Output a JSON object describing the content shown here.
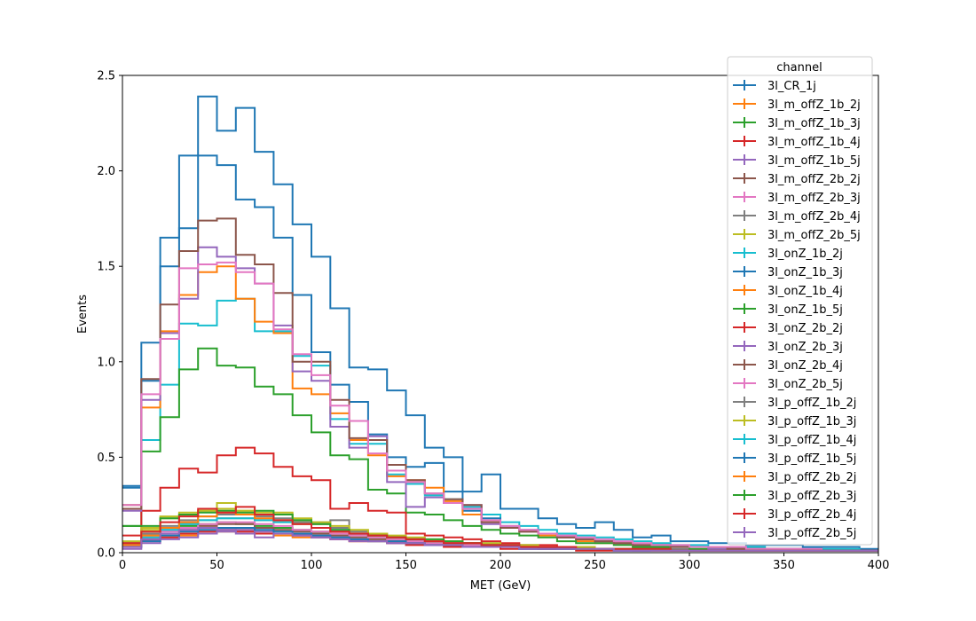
{
  "chart_data": {
    "type": "line",
    "subtype": "step-histogram",
    "xlabel": "MET (GeV)",
    "ylabel": "Events",
    "xlim": [
      0,
      400
    ],
    "ylim": [
      0,
      2.5
    ],
    "x_ticks": [
      "0",
      "50",
      "100",
      "150",
      "200",
      "250",
      "300",
      "350",
      "400"
    ],
    "y_ticks": [
      "0.0",
      "0.5",
      "1.0",
      "1.5",
      "2.0",
      "2.5"
    ],
    "grid": false,
    "legend": {
      "title": "channel",
      "placement": "top-right"
    },
    "bin_edges": [
      0,
      10,
      20,
      30,
      40,
      50,
      60,
      70,
      80,
      90,
      100,
      110,
      120,
      130,
      140,
      150,
      160,
      170,
      180,
      190,
      200,
      210,
      220,
      230,
      240,
      250,
      260,
      270,
      280,
      290,
      300,
      310,
      320,
      330,
      340,
      350,
      360,
      370,
      380,
      390,
      400
    ],
    "series": [
      {
        "name": "3l_CR_1j",
        "color": "#1f77b4",
        "values": [
          0.35,
          1.1,
          1.65,
          2.08,
          2.39,
          2.21,
          2.33,
          2.1,
          1.93,
          1.72,
          1.55,
          1.28,
          0.97,
          0.96,
          0.85,
          0.72,
          0.55,
          0.5,
          0.32,
          0.41,
          0.23,
          0.23,
          0.18,
          0.15,
          0.13,
          0.16,
          0.12,
          0.08,
          0.09,
          0.06,
          0.06,
          0.05,
          0.05,
          0.04,
          0.04,
          0.04,
          0.03,
          0.03,
          0.03,
          0.02
        ]
      },
      {
        "name": "3l_m_offZ_1b_2j",
        "color": "#ff7f0e",
        "values": [
          0.04,
          0.07,
          0.08,
          0.09,
          0.1,
          0.11,
          0.12,
          0.1,
          0.09,
          0.08,
          0.08,
          0.07,
          0.06,
          0.06,
          0.05,
          0.05,
          0.04,
          0.04,
          0.03,
          0.03,
          0.03,
          0.03,
          0.02,
          0.02,
          0.02,
          0.02,
          0.02,
          0.02,
          0.01,
          0.01,
          0.01,
          0.01,
          0.01,
          0.01,
          0.01,
          0.01,
          0.01,
          0.01,
          0.01,
          0.01
        ]
      },
      {
        "name": "3l_m_offZ_1b_3j",
        "color": "#2ca02c",
        "values": [
          0.05,
          0.1,
          0.13,
          0.14,
          0.15,
          0.16,
          0.15,
          0.14,
          0.13,
          0.12,
          0.11,
          0.1,
          0.09,
          0.08,
          0.07,
          0.06,
          0.05,
          0.05,
          0.04,
          0.04,
          0.03,
          0.03,
          0.03,
          0.02,
          0.02,
          0.02,
          0.02,
          0.02,
          0.01,
          0.01,
          0.01,
          0.01,
          0.01,
          0.01,
          0.01,
          0.01,
          0.01,
          0.01,
          0.01,
          0.01
        ]
      },
      {
        "name": "3l_m_offZ_1b_4j",
        "color": "#d62728",
        "values": [
          0.03,
          0.06,
          0.08,
          0.1,
          0.11,
          0.12,
          0.11,
          0.1,
          0.1,
          0.09,
          0.08,
          0.07,
          0.06,
          0.06,
          0.05,
          0.04,
          0.04,
          0.03,
          0.03,
          0.03,
          0.02,
          0.02,
          0.02,
          0.02,
          0.01,
          0.01,
          0.01,
          0.01,
          0.01,
          0.01,
          0.01,
          0.01,
          0.01,
          0.01,
          0.01,
          0.01,
          0.01,
          0.01,
          0.01,
          0.01
        ]
      },
      {
        "name": "3l_m_offZ_1b_5j",
        "color": "#9467bd",
        "values": [
          0.02,
          0.05,
          0.07,
          0.08,
          0.1,
          0.11,
          0.12,
          0.11,
          0.1,
          0.09,
          0.08,
          0.08,
          0.07,
          0.06,
          0.05,
          0.05,
          0.04,
          0.04,
          0.03,
          0.03,
          0.03,
          0.02,
          0.02,
          0.02,
          0.02,
          0.02,
          0.01,
          0.01,
          0.01,
          0.01,
          0.01,
          0.01,
          0.01,
          0.01,
          0.01,
          0.01,
          0.01,
          0.01,
          0.01,
          0.01
        ]
      },
      {
        "name": "3l_m_offZ_2b_2j",
        "color": "#8c564b",
        "values": [
          0.03,
          0.07,
          0.1,
          0.12,
          0.14,
          0.15,
          0.15,
          0.13,
          0.12,
          0.11,
          0.1,
          0.09,
          0.08,
          0.07,
          0.06,
          0.05,
          0.05,
          0.04,
          0.04,
          0.03,
          0.03,
          0.03,
          0.02,
          0.02,
          0.02,
          0.02,
          0.02,
          0.01,
          0.01,
          0.01,
          0.01,
          0.01,
          0.01,
          0.01,
          0.01,
          0.01,
          0.01,
          0.01,
          0.01,
          0.01
        ]
      },
      {
        "name": "3l_m_offZ_2b_3j",
        "color": "#e377c2",
        "values": [
          0.04,
          0.08,
          0.11,
          0.13,
          0.15,
          0.16,
          0.16,
          0.15,
          0.14,
          0.12,
          0.11,
          0.1,
          0.09,
          0.08,
          0.07,
          0.06,
          0.05,
          0.05,
          0.04,
          0.04,
          0.03,
          0.03,
          0.03,
          0.02,
          0.02,
          0.02,
          0.02,
          0.02,
          0.01,
          0.01,
          0.01,
          0.01,
          0.01,
          0.01,
          0.01,
          0.01,
          0.01,
          0.01,
          0.01,
          0.01
        ]
      },
      {
        "name": "3l_m_offZ_2b_4j",
        "color": "#7f7f7f",
        "values": [
          0.04,
          0.09,
          0.12,
          0.15,
          0.17,
          0.18,
          0.18,
          0.17,
          0.16,
          0.17,
          0.16,
          0.17,
          0.1,
          0.09,
          0.08,
          0.07,
          0.06,
          0.06,
          0.05,
          0.05,
          0.04,
          0.04,
          0.03,
          0.03,
          0.03,
          0.02,
          0.02,
          0.02,
          0.02,
          0.02,
          0.01,
          0.01,
          0.01,
          0.01,
          0.01,
          0.01,
          0.01,
          0.01,
          0.01,
          0.01
        ]
      },
      {
        "name": "3l_m_offZ_2b_5j",
        "color": "#bcbd22",
        "values": [
          0.05,
          0.12,
          0.19,
          0.21,
          0.22,
          0.26,
          0.22,
          0.2,
          0.21,
          0.17,
          0.15,
          0.13,
          0.11,
          0.1,
          0.08,
          0.07,
          0.06,
          0.06,
          0.05,
          0.04,
          0.04,
          0.03,
          0.03,
          0.03,
          0.02,
          0.02,
          0.02,
          0.02,
          0.02,
          0.01,
          0.01,
          0.01,
          0.01,
          0.01,
          0.01,
          0.01,
          0.01,
          0.01,
          0.01,
          0.01
        ]
      },
      {
        "name": "3l_onZ_1b_2j",
        "color": "#17becf",
        "values": [
          0.25,
          0.59,
          0.88,
          1.2,
          1.19,
          1.32,
          1.33,
          1.16,
          1.16,
          1.03,
          0.98,
          0.7,
          0.57,
          0.57,
          0.41,
          0.36,
          0.3,
          0.28,
          0.24,
          0.2,
          0.16,
          0.14,
          0.12,
          0.1,
          0.09,
          0.08,
          0.07,
          0.06,
          0.05,
          0.04,
          0.04,
          0.03,
          0.03,
          0.03,
          0.02,
          0.02,
          0.02,
          0.02,
          0.02,
          0.01
        ]
      },
      {
        "name": "3l_onZ_1b_3j",
        "color": "#1f77b4",
        "values": [
          0.34,
          0.9,
          1.5,
          1.7,
          2.08,
          2.03,
          1.85,
          1.81,
          1.65,
          1.35,
          1.05,
          0.88,
          0.79,
          0.62,
          0.5,
          0.45,
          0.47,
          0.32,
          0.22,
          0.18,
          0.14,
          0.12,
          0.1,
          0.08,
          0.07,
          0.06,
          0.05,
          0.04,
          0.04,
          0.03,
          0.03,
          0.03,
          0.02,
          0.02,
          0.02,
          0.02,
          0.02,
          0.01,
          0.01,
          0.01
        ]
      },
      {
        "name": "3l_onZ_1b_4j",
        "color": "#ff7f0e",
        "values": [
          0.25,
          0.76,
          1.16,
          1.35,
          1.47,
          1.5,
          1.33,
          1.21,
          1.15,
          0.86,
          0.83,
          0.73,
          0.59,
          0.51,
          0.4,
          0.38,
          0.34,
          0.27,
          0.2,
          0.16,
          0.13,
          0.11,
          0.09,
          0.08,
          0.06,
          0.05,
          0.05,
          0.04,
          0.03,
          0.03,
          0.03,
          0.02,
          0.02,
          0.02,
          0.02,
          0.01,
          0.01,
          0.01,
          0.01,
          0.01
        ]
      },
      {
        "name": "3l_onZ_1b_5j",
        "color": "#2ca02c",
        "values": [
          0.14,
          0.53,
          0.71,
          0.96,
          1.07,
          0.98,
          0.97,
          0.87,
          0.83,
          0.72,
          0.63,
          0.51,
          0.49,
          0.33,
          0.31,
          0.21,
          0.2,
          0.17,
          0.14,
          0.12,
          0.1,
          0.09,
          0.08,
          0.06,
          0.05,
          0.05,
          0.04,
          0.03,
          0.03,
          0.03,
          0.02,
          0.02,
          0.02,
          0.02,
          0.01,
          0.01,
          0.01,
          0.01,
          0.01,
          0.01
        ]
      },
      {
        "name": "3l_onZ_2b_2j",
        "color": "#d62728",
        "values": [
          0.09,
          0.22,
          0.34,
          0.44,
          0.42,
          0.51,
          0.55,
          0.52,
          0.45,
          0.4,
          0.38,
          0.23,
          0.26,
          0.22,
          0.21,
          0.1,
          0.09,
          0.08,
          0.07,
          0.06,
          0.05,
          0.04,
          0.04,
          0.03,
          0.03,
          0.02,
          0.02,
          0.02,
          0.02,
          0.01,
          0.01,
          0.01,
          0.01,
          0.01,
          0.01,
          0.01,
          0.01,
          0.01,
          0.01,
          0.01
        ]
      },
      {
        "name": "3l_onZ_2b_3j",
        "color": "#9467bd",
        "values": [
          0.22,
          0.8,
          1.15,
          1.33,
          1.6,
          1.55,
          1.49,
          1.41,
          1.19,
          0.95,
          0.9,
          0.66,
          0.55,
          0.61,
          0.37,
          0.24,
          0.29,
          0.26,
          0.25,
          0.15,
          0.13,
          0.11,
          0.1,
          0.08,
          0.07,
          0.06,
          0.05,
          0.04,
          0.04,
          0.03,
          0.03,
          0.02,
          0.02,
          0.02,
          0.02,
          0.02,
          0.01,
          0.01,
          0.01,
          0.01
        ]
      },
      {
        "name": "3l_onZ_2b_4j",
        "color": "#8c564b",
        "values": [
          0.23,
          0.91,
          1.3,
          1.58,
          1.74,
          1.75,
          1.56,
          1.51,
          1.36,
          1.0,
          1.0,
          0.8,
          0.6,
          0.59,
          0.46,
          0.38,
          0.31,
          0.28,
          0.25,
          0.16,
          0.13,
          0.11,
          0.1,
          0.08,
          0.07,
          0.06,
          0.05,
          0.04,
          0.04,
          0.03,
          0.03,
          0.03,
          0.02,
          0.02,
          0.02,
          0.02,
          0.01,
          0.01,
          0.01,
          0.01
        ]
      },
      {
        "name": "3l_onZ_2b_5j",
        "color": "#e377c2",
        "values": [
          0.25,
          0.83,
          1.12,
          1.49,
          1.51,
          1.52,
          1.47,
          1.41,
          1.17,
          1.04,
          0.93,
          0.77,
          0.69,
          0.52,
          0.43,
          0.37,
          0.31,
          0.26,
          0.23,
          0.17,
          0.14,
          0.12,
          0.1,
          0.09,
          0.08,
          0.07,
          0.06,
          0.05,
          0.04,
          0.04,
          0.03,
          0.03,
          0.03,
          0.02,
          0.02,
          0.02,
          0.02,
          0.01,
          0.01,
          0.01
        ]
      },
      {
        "name": "3l_p_offZ_1b_2j",
        "color": "#7f7f7f",
        "values": [
          0.05,
          0.1,
          0.14,
          0.17,
          0.19,
          0.2,
          0.2,
          0.19,
          0.18,
          0.16,
          0.15,
          0.13,
          0.11,
          0.1,
          0.08,
          0.07,
          0.06,
          0.06,
          0.05,
          0.04,
          0.04,
          0.03,
          0.03,
          0.03,
          0.02,
          0.02,
          0.02,
          0.02,
          0.02,
          0.01,
          0.01,
          0.01,
          0.01,
          0.01,
          0.01,
          0.01,
          0.01,
          0.01,
          0.01,
          0.01
        ]
      },
      {
        "name": "3l_p_offZ_1b_3j",
        "color": "#bcbd22",
        "values": [
          0.06,
          0.13,
          0.18,
          0.2,
          0.22,
          0.23,
          0.22,
          0.21,
          0.2,
          0.18,
          0.16,
          0.14,
          0.12,
          0.1,
          0.09,
          0.08,
          0.07,
          0.06,
          0.05,
          0.05,
          0.04,
          0.04,
          0.03,
          0.03,
          0.03,
          0.02,
          0.02,
          0.02,
          0.02,
          0.01,
          0.01,
          0.01,
          0.01,
          0.01,
          0.01,
          0.01,
          0.01,
          0.01,
          0.01,
          0.01
        ]
      },
      {
        "name": "3l_p_offZ_1b_4j",
        "color": "#17becf",
        "values": [
          0.04,
          0.08,
          0.12,
          0.15,
          0.17,
          0.18,
          0.18,
          0.17,
          0.16,
          0.15,
          0.13,
          0.12,
          0.1,
          0.09,
          0.08,
          0.07,
          0.06,
          0.05,
          0.05,
          0.04,
          0.04,
          0.03,
          0.03,
          0.02,
          0.02,
          0.02,
          0.02,
          0.02,
          0.01,
          0.01,
          0.01,
          0.01,
          0.01,
          0.01,
          0.01,
          0.01,
          0.01,
          0.01,
          0.01,
          0.01
        ]
      },
      {
        "name": "3l_p_offZ_1b_5j",
        "color": "#1f77b4",
        "values": [
          0.03,
          0.06,
          0.09,
          0.11,
          0.12,
          0.13,
          0.13,
          0.12,
          0.11,
          0.1,
          0.09,
          0.08,
          0.07,
          0.06,
          0.06,
          0.05,
          0.04,
          0.04,
          0.03,
          0.03,
          0.03,
          0.02,
          0.02,
          0.02,
          0.02,
          0.02,
          0.01,
          0.01,
          0.01,
          0.01,
          0.01,
          0.01,
          0.01,
          0.01,
          0.01,
          0.01,
          0.01,
          0.01,
          0.01,
          0.01
        ]
      },
      {
        "name": "3l_p_offZ_2b_2j",
        "color": "#ff7f0e",
        "values": [
          0.04,
          0.09,
          0.13,
          0.16,
          0.19,
          0.21,
          0.2,
          0.18,
          0.17,
          0.15,
          0.13,
          0.11,
          0.1,
          0.09,
          0.08,
          0.07,
          0.06,
          0.05,
          0.05,
          0.04,
          0.04,
          0.03,
          0.03,
          0.03,
          0.02,
          0.02,
          0.02,
          0.02,
          0.01,
          0.01,
          0.01,
          0.01,
          0.01,
          0.01,
          0.01,
          0.01,
          0.01,
          0.01,
          0.01,
          0.01
        ]
      },
      {
        "name": "3l_p_offZ_2b_3j",
        "color": "#2ca02c",
        "values": [
          0.14,
          0.14,
          0.18,
          0.2,
          0.21,
          0.22,
          0.21,
          0.22,
          0.2,
          0.17,
          0.15,
          0.12,
          0.1,
          0.09,
          0.08,
          0.07,
          0.07,
          0.06,
          0.05,
          0.04,
          0.04,
          0.03,
          0.03,
          0.03,
          0.02,
          0.02,
          0.02,
          0.02,
          0.02,
          0.01,
          0.01,
          0.01,
          0.01,
          0.01,
          0.01,
          0.01,
          0.01,
          0.01,
          0.01,
          0.01
        ]
      },
      {
        "name": "3l_p_offZ_2b_4j",
        "color": "#d62728",
        "values": [
          0.05,
          0.11,
          0.16,
          0.19,
          0.23,
          0.21,
          0.24,
          0.2,
          0.17,
          0.15,
          0.13,
          0.11,
          0.1,
          0.09,
          0.08,
          0.07,
          0.06,
          0.05,
          0.05,
          0.04,
          0.04,
          0.03,
          0.03,
          0.03,
          0.02,
          0.02,
          0.02,
          0.02,
          0.02,
          0.01,
          0.01,
          0.01,
          0.01,
          0.01,
          0.01,
          0.01,
          0.01,
          0.01,
          0.01,
          0.01
        ]
      },
      {
        "name": "3l_p_offZ_2b_5j",
        "color": "#9467bd",
        "values": [
          0.03,
          0.07,
          0.1,
          0.12,
          0.13,
          0.12,
          0.1,
          0.08,
          0.1,
          0.09,
          0.08,
          0.07,
          0.06,
          0.06,
          0.05,
          0.05,
          0.04,
          0.04,
          0.03,
          0.03,
          0.03,
          0.02,
          0.02,
          0.02,
          0.02,
          0.02,
          0.01,
          0.01,
          0.01,
          0.01,
          0.01,
          0.01,
          0.01,
          0.01,
          0.01,
          0.01,
          0.01,
          0.01,
          0.01,
          0.01
        ]
      }
    ]
  }
}
